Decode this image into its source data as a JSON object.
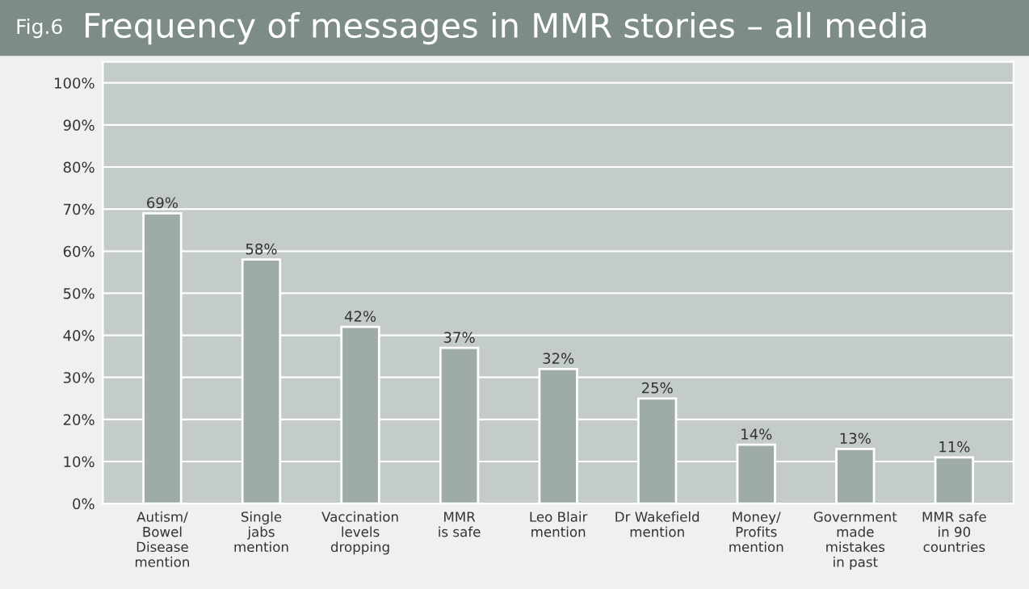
{
  "chart_data": {
    "type": "bar",
    "title": "Frequency of messages in MMR stories – all media",
    "annotations": [
      "Fig.6"
    ],
    "categories": [
      "Autism/\nBowel\nDisease\nmention",
      "Single\njabs\nmention",
      "Vaccination\nlevels\ndropping",
      "MMR\nis safe",
      "Leo Blair\nmention",
      "Dr Wakefield\nmention",
      "Money/\nProfits\nmention",
      "Government\nmade\nmistakes\nin past",
      "MMR safe\nin 90\ncountries"
    ],
    "values": [
      69,
      58,
      42,
      37,
      32,
      25,
      14,
      13,
      11
    ],
    "value_labels": [
      "69%",
      "58%",
      "42%",
      "37%",
      "32%",
      "25%",
      "14%",
      "13%",
      "11%"
    ],
    "color": "#9eaca5",
    "ylim": [
      0,
      105
    ],
    "yticks": [
      {
        "value": 0,
        "label": "0%"
      },
      {
        "value": 10,
        "label": "10%"
      },
      {
        "value": 20,
        "label": "20%"
      },
      {
        "value": 30,
        "label": "30%"
      },
      {
        "value": 40,
        "label": "40%"
      },
      {
        "value": 50,
        "label": "50%"
      },
      {
        "value": 60,
        "label": "60%"
      },
      {
        "value": 70,
        "label": "70%"
      },
      {
        "value": 80,
        "label": "80%"
      },
      {
        "value": 90,
        "label": "90%"
      },
      {
        "value": 100,
        "label": "100%"
      }
    ],
    "grid": "y"
  }
}
